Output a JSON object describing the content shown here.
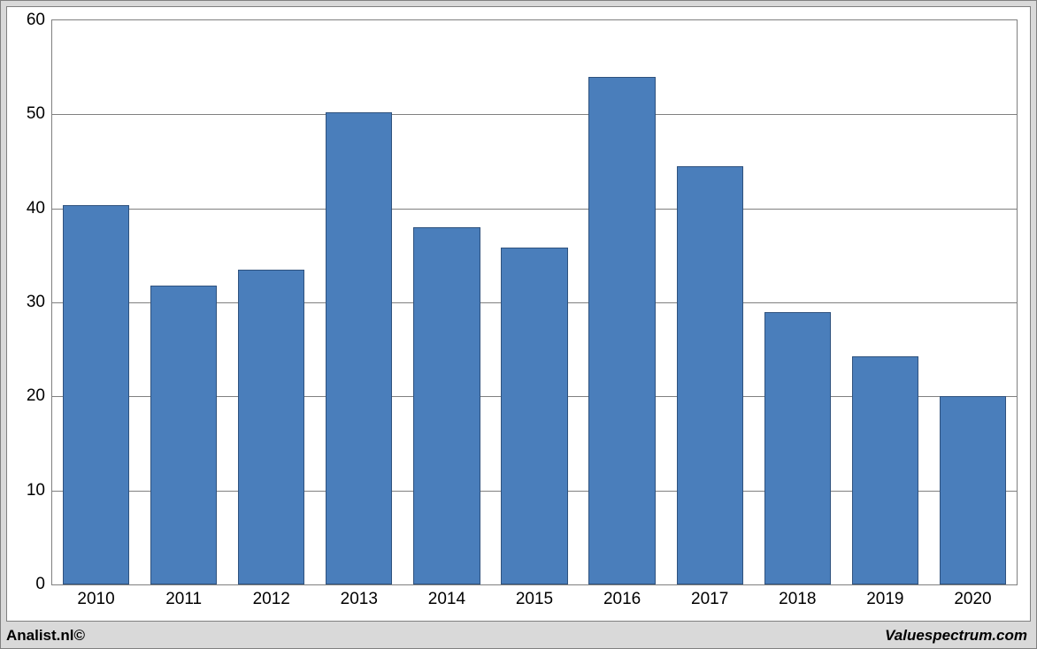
{
  "chart": {
    "type": "bar",
    "categories": [
      "2010",
      "2011",
      "2012",
      "2013",
      "2014",
      "2015",
      "2016",
      "2017",
      "2018",
      "2019",
      "2020"
    ],
    "values": [
      40.3,
      31.8,
      33.5,
      50.2,
      38.0,
      35.8,
      54.0,
      44.5,
      29.0,
      24.3,
      20.0
    ],
    "bar_color": "#4a7ebb",
    "bar_border_color": "#2f527e",
    "bar_width_ratio": 0.76,
    "ylim": [
      0,
      60
    ],
    "ytick_step": 10,
    "grid_color": "#808080",
    "background_color": "#ffffff",
    "outer_background": "#d9d9d9",
    "axis_fontsize": 19,
    "axis_color": "#000000",
    "border_color": "#808080"
  },
  "footer": {
    "left": "Analist.nl©",
    "right": "Valuespectrum.com"
  }
}
